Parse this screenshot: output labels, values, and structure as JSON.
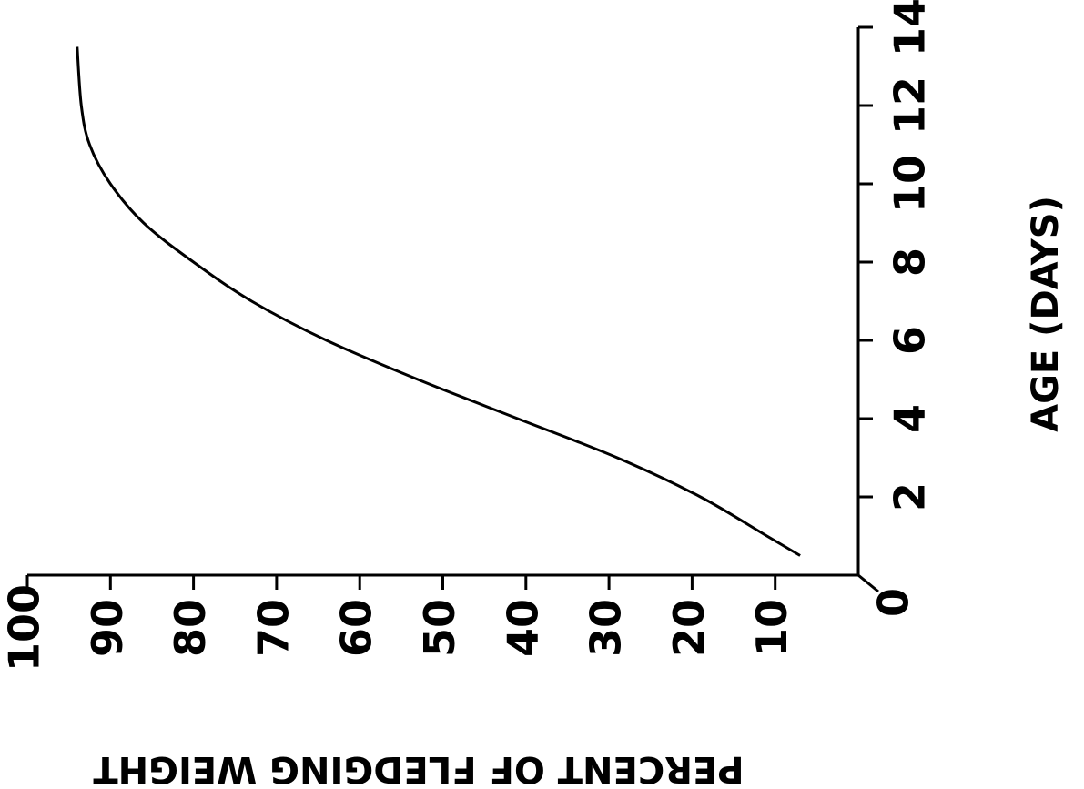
{
  "chart_data": {
    "type": "line",
    "title": "",
    "xlabel": "AGE (DAYS)",
    "ylabel": "PERCENT OF FLEDGING WEIGHT",
    "xlim": [
      0,
      14
    ],
    "ylim": [
      0,
      100
    ],
    "x_ticks": [
      0,
      2,
      4,
      6,
      8,
      10,
      12,
      14
    ],
    "y_ticks": [
      10,
      20,
      30,
      40,
      50,
      60,
      70,
      80,
      90,
      100
    ],
    "grid": false,
    "legend": "none",
    "line_color": "#000000",
    "series": [
      {
        "x": [
          0.5,
          1,
          2,
          3,
          4,
          5,
          6,
          7,
          8,
          9,
          10,
          11,
          12,
          13.5
        ],
        "y": [
          7,
          11,
          19,
          29,
          41,
          53,
          64,
          73,
          80,
          86,
          90,
          92.5,
          93.5,
          94
        ]
      }
    ]
  }
}
